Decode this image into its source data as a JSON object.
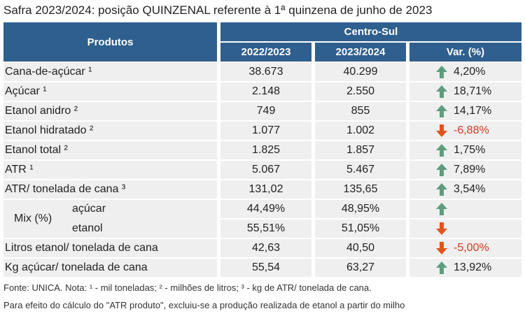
{
  "title": "Safra 2023/2024: posição QUINZENAL referente à 1ª quinzena de junho de 2023",
  "table": {
    "header": {
      "products": "Produtos",
      "region": "Centro-Sul",
      "columns": [
        "2022/2023",
        "2023/2024",
        "Var. (%)"
      ]
    },
    "rows": [
      {
        "label": "Cana-de-açúcar ¹",
        "values": [
          "38.673",
          "40.299",
          "4,20%"
        ],
        "arrow": "up"
      },
      {
        "label": "Açúcar ¹",
        "values": [
          "2.148",
          "2.550",
          "18,71%"
        ],
        "arrow": "up"
      },
      {
        "label": "Etanol anidro ²",
        "values": [
          "749",
          "855",
          "14,17%"
        ],
        "arrow": "up"
      },
      {
        "label": "Etanol hidratado ²",
        "values": [
          "1.077",
          "1.002",
          "-6,88%"
        ],
        "arrow": "down"
      },
      {
        "label": "Etanol total ²",
        "values": [
          "1.825",
          "1.857",
          "1,75%"
        ],
        "arrow": "up"
      },
      {
        "label": "ATR ¹",
        "values": [
          "5.067",
          "5.467",
          "7,89%"
        ],
        "arrow": "up"
      },
      {
        "label": "ATR/ tonelada de cana ³",
        "values": [
          "131,02",
          "135,65",
          "3,54%"
        ],
        "arrow": "up"
      },
      {
        "label": "Mix (%)",
        "subrows": [
          {
            "label": "açúcar",
            "values": [
              "44,49%",
              "48,95%"
            ],
            "arrow": "up"
          },
          {
            "label": "etanol",
            "values": [
              "55,51%",
              "51,05%"
            ],
            "arrow": "down"
          }
        ]
      },
      {
        "label": "Litros etanol/ tonelada de cana",
        "values": [
          "42,63",
          "40,50",
          "-5,00%"
        ],
        "arrow": "down"
      },
      {
        "label": "Kg açúcar/ tonelada de cana",
        "values": [
          "55,54",
          "63,27",
          "13,92%"
        ],
        "arrow": "up"
      }
    ]
  },
  "footnotes": [
    "Fonte: UNICA. Nota: ¹ - mil toneladas; ² - milhões de litros; ³ - kg de ATR/ tonelada de cana.",
    "Para efeito do cálculo do \"ATR produto\", excluiu-se a produção realizada de etanol a partir do milho"
  ]
}
